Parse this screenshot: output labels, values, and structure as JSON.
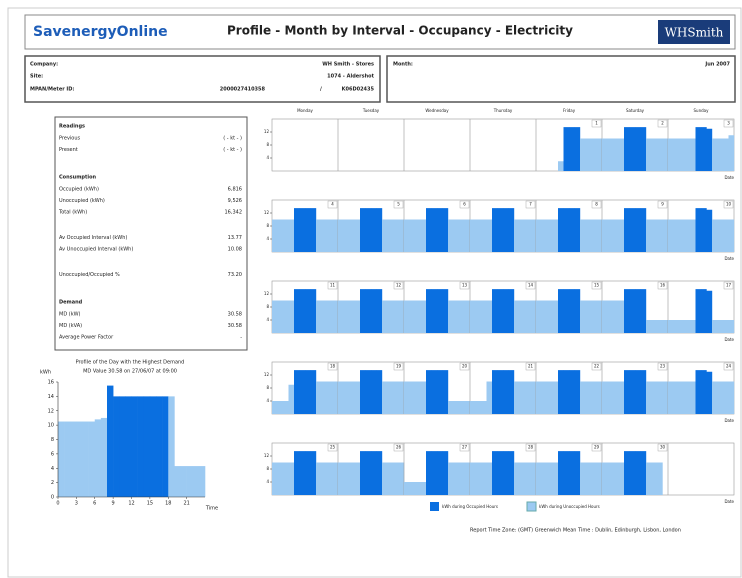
{
  "header": {
    "brand": "SavenergyOnline",
    "title": "Profile - Month by Interval - Occupancy - Electricity",
    "logo": "WHSmith"
  },
  "info": {
    "company_label": "Company:",
    "company": "WH Smith - Stores",
    "site_label": "Site:",
    "site": "1074 - Aldershot",
    "meter_label": "MPAN/Meter ID:",
    "mpan": "2000027410358",
    "separator": "/",
    "meter": "K06D02435",
    "month_label": "Month:",
    "month": "Jun 2007"
  },
  "summary": [
    {
      "title": "Readings",
      "groups": [
        [
          {
            "label": "Previous",
            "value": "( - kt - )"
          },
          {
            "label": "Present",
            "value": "( - kt - )"
          }
        ]
      ]
    },
    {
      "title": "Consumption",
      "groups": [
        [
          {
            "label": "Occupied (kWh)",
            "value": "6,816"
          },
          {
            "label": "Unoccupied (kWh)",
            "value": "9,526"
          },
          {
            "label": "Total (kWh)",
            "value": "16,342"
          }
        ],
        [
          {
            "label": "Av Occupied Interval (kWh)",
            "value": "13.77"
          },
          {
            "label": "Av Unoccupied Interval (kWh)",
            "value": "10.08"
          }
        ],
        [
          {
            "label": "Unoccupied/Occupied %",
            "value": "73.20"
          }
        ]
      ]
    },
    {
      "title": "Demand",
      "groups": [
        [
          {
            "label": "MD (kW)",
            "value": "30.58"
          },
          {
            "label": "MD (kVA)",
            "value": "30.58"
          },
          {
            "label": "Average Power Factor",
            "value": "-"
          }
        ]
      ]
    }
  ],
  "day_profile": {
    "title": "Profile of the Day with the Highest Demand",
    "subtitle": "MD Value 30.58 on 27/06/07 at 09:00",
    "y_label": "kWh",
    "x_label": "Time",
    "values": [
      10.5,
      10.5,
      10.5,
      10.5,
      10.5,
      10.5,
      10.8,
      11,
      15.5,
      14,
      14,
      14,
      14,
      14,
      14,
      14,
      14,
      14,
      14,
      4.3,
      4.3,
      4.3,
      4.3,
      4.3
    ],
    "ylim": [
      0,
      16
    ],
    "yticks": [
      0,
      2,
      4,
      6,
      8,
      10,
      12,
      14,
      16
    ],
    "xlim": [
      0,
      24
    ],
    "xticks": [
      0,
      3,
      6,
      9,
      12,
      15,
      18,
      21
    ],
    "occupied_color": "#0a6fe0",
    "unoccupied_color": "#9ccaf2"
  },
  "calendar": {
    "weekdays": [
      "Monday",
      "Tuesday",
      "Wednesday",
      "Thursday",
      "Friday",
      "Saturday",
      "Sunday"
    ],
    "x_label": "Date",
    "ylim": [
      0,
      16
    ],
    "yticks": [
      4,
      8,
      12
    ],
    "weeks": [
      [
        null,
        null,
        null,
        null,
        {
          "day": "1",
          "values": [
            0,
            0,
            0,
            0,
            3,
            13.5,
            13.5,
            13.5,
            10,
            10,
            10,
            10
          ]
        },
        {
          "day": "2",
          "values": [
            10,
            10,
            10,
            10,
            13.5,
            13.5,
            13.5,
            13.5,
            10,
            10,
            10,
            10
          ]
        },
        {
          "day": "3",
          "values": [
            10,
            10,
            10,
            10,
            10,
            13.5,
            13.5,
            13,
            10,
            10,
            10,
            11
          ]
        }
      ],
      [
        {
          "day": "4",
          "values": [
            10,
            10,
            10,
            10,
            13.5,
            13.5,
            13.5,
            13.5,
            10,
            10,
            10,
            10
          ]
        },
        {
          "day": "5",
          "values": [
            10,
            10,
            10,
            10,
            13.5,
            13.5,
            13.5,
            13.5,
            10,
            10,
            10,
            10
          ]
        },
        {
          "day": "6",
          "values": [
            10,
            10,
            10,
            10,
            13.5,
            13.5,
            13.5,
            13.5,
            10,
            10,
            10,
            10
          ]
        },
        {
          "day": "7",
          "values": [
            10,
            10,
            10,
            10,
            13.5,
            13.5,
            13.5,
            13.5,
            10,
            10,
            10,
            10
          ]
        },
        {
          "day": "8",
          "values": [
            10,
            10,
            10,
            10,
            13.5,
            13.5,
            13.5,
            13.5,
            10,
            10,
            10,
            10
          ]
        },
        {
          "day": "9",
          "values": [
            10,
            10,
            10,
            10,
            13.5,
            13.5,
            13.5,
            13.5,
            10,
            10,
            10,
            10
          ]
        },
        {
          "day": "10",
          "values": [
            10,
            10,
            10,
            10,
            10,
            13.5,
            13.5,
            13,
            10,
            10,
            10,
            10
          ]
        }
      ],
      [
        {
          "day": "11",
          "values": [
            10,
            10,
            10,
            10,
            13.5,
            13.5,
            13.5,
            13.5,
            10,
            10,
            10,
            10
          ]
        },
        {
          "day": "12",
          "values": [
            10,
            10,
            10,
            10,
            13.5,
            13.5,
            13.5,
            13.5,
            10,
            10,
            10,
            10
          ]
        },
        {
          "day": "13",
          "values": [
            10,
            10,
            10,
            10,
            13.5,
            13.5,
            13.5,
            13.5,
            10,
            10,
            10,
            10
          ]
        },
        {
          "day": "14",
          "values": [
            10,
            10,
            10,
            10,
            13.5,
            13.5,
            13.5,
            13.5,
            10,
            10,
            10,
            10
          ]
        },
        {
          "day": "15",
          "values": [
            10,
            10,
            10,
            10,
            13.5,
            13.5,
            13.5,
            13.5,
            10,
            10,
            10,
            10
          ]
        },
        {
          "day": "16",
          "values": [
            10,
            10,
            10,
            10,
            13.5,
            13.5,
            13.5,
            13.5,
            4,
            4,
            4,
            4
          ]
        },
        {
          "day": "17",
          "values": [
            4,
            4,
            4,
            4,
            4,
            13.5,
            13.5,
            13,
            4,
            4,
            4,
            4
          ]
        }
      ],
      [
        {
          "day": "18",
          "values": [
            4,
            4,
            4,
            9,
            13.5,
            13.5,
            13.5,
            13.5,
            10,
            10,
            10,
            10
          ]
        },
        {
          "day": "19",
          "values": [
            10,
            10,
            10,
            10,
            13.5,
            13.5,
            13.5,
            13.5,
            10,
            10,
            10,
            10
          ]
        },
        {
          "day": "20",
          "values": [
            10,
            10,
            10,
            10,
            13.5,
            13.5,
            13.5,
            13.5,
            4,
            4,
            4,
            4
          ]
        },
        {
          "day": "21",
          "values": [
            4,
            4,
            4,
            10,
            13.5,
            13.5,
            13.5,
            13.5,
            10,
            10,
            10,
            10
          ]
        },
        {
          "day": "22",
          "values": [
            10,
            10,
            10,
            10,
            13.5,
            13.5,
            13.5,
            13.5,
            10,
            10,
            10,
            10
          ]
        },
        {
          "day": "23",
          "values": [
            10,
            10,
            10,
            10,
            13.5,
            13.5,
            13.5,
            13.5,
            10,
            10,
            10,
            10
          ]
        },
        {
          "day": "24",
          "values": [
            10,
            10,
            10,
            10,
            10,
            13.5,
            13.5,
            13,
            10,
            10,
            10,
            10
          ]
        }
      ],
      [
        {
          "day": "25",
          "values": [
            10,
            10,
            10,
            10,
            13.5,
            13.5,
            13.5,
            13.5,
            10,
            10,
            10,
            10
          ]
        },
        {
          "day": "26",
          "values": [
            10,
            10,
            10,
            10,
            13.5,
            13.5,
            13.5,
            13.5,
            10,
            10,
            10,
            10
          ]
        },
        {
          "day": "27",
          "values": [
            4,
            4,
            4,
            4,
            13.5,
            13.5,
            13.5,
            13.5,
            10,
            10,
            10,
            10
          ]
        },
        {
          "day": "28",
          "values": [
            10,
            10,
            10,
            10,
            13.5,
            13.5,
            13.5,
            13.5,
            10,
            10,
            10,
            10
          ]
        },
        {
          "day": "29",
          "values": [
            10,
            10,
            10,
            10,
            13.5,
            13.5,
            13.5,
            13.5,
            10,
            10,
            10,
            10
          ]
        },
        {
          "day": "30",
          "values": [
            10,
            10,
            10,
            10,
            13.5,
            13.5,
            13.5,
            13.5,
            10,
            10,
            10,
            0
          ]
        },
        null
      ]
    ]
  },
  "legend": {
    "occupied": "kWh during Occupied Hours",
    "unoccupied": "kWh during Unoccupied Hours"
  },
  "footer": "Report Time Zone: (GMT) Greenwich Mean Time : Dublin, Edinburgh, Lisbon, London"
}
